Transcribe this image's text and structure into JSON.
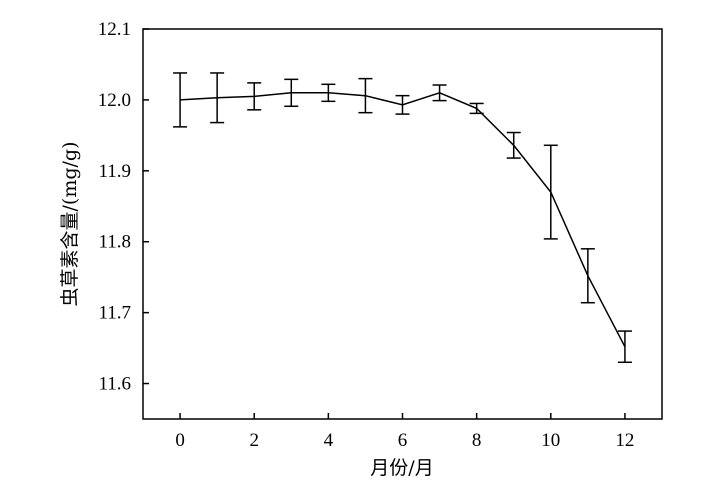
{
  "chart_data": {
    "type": "line",
    "title": "",
    "xlabel": "月份/月",
    "ylabel": "虫草素含量/(mg/g)",
    "xlim": [
      -1,
      13
    ],
    "ylim": [
      11.55,
      12.1
    ],
    "xticks": [
      0,
      2,
      4,
      6,
      8,
      10,
      12
    ],
    "yticks": [
      11.6,
      11.7,
      11.8,
      11.9,
      12.0,
      12.1
    ],
    "xtick_labels": [
      "0",
      "2",
      "4",
      "6",
      "8",
      "10",
      "12"
    ],
    "ytick_labels": [
      "11.6",
      "11.7",
      "11.8",
      "11.9",
      "12.0",
      "12.1"
    ],
    "grid": false,
    "legend": "none",
    "series": [
      {
        "x": [
          0,
          1,
          2,
          3,
          4,
          5,
          6,
          7,
          8,
          9,
          10,
          11,
          12
        ],
        "y": [
          12.0,
          12.003,
          12.005,
          12.01,
          12.01,
          12.006,
          11.993,
          12.01,
          11.988,
          11.936,
          11.87,
          11.752,
          11.652
        ],
        "error": [
          0.038,
          0.035,
          0.019,
          0.019,
          0.012,
          0.024,
          0.013,
          0.011,
          0.007,
          0.018,
          0.066,
          0.038,
          0.022
        ]
      }
    ],
    "colors": {
      "line": "#000000",
      "axis": "#000000"
    }
  }
}
